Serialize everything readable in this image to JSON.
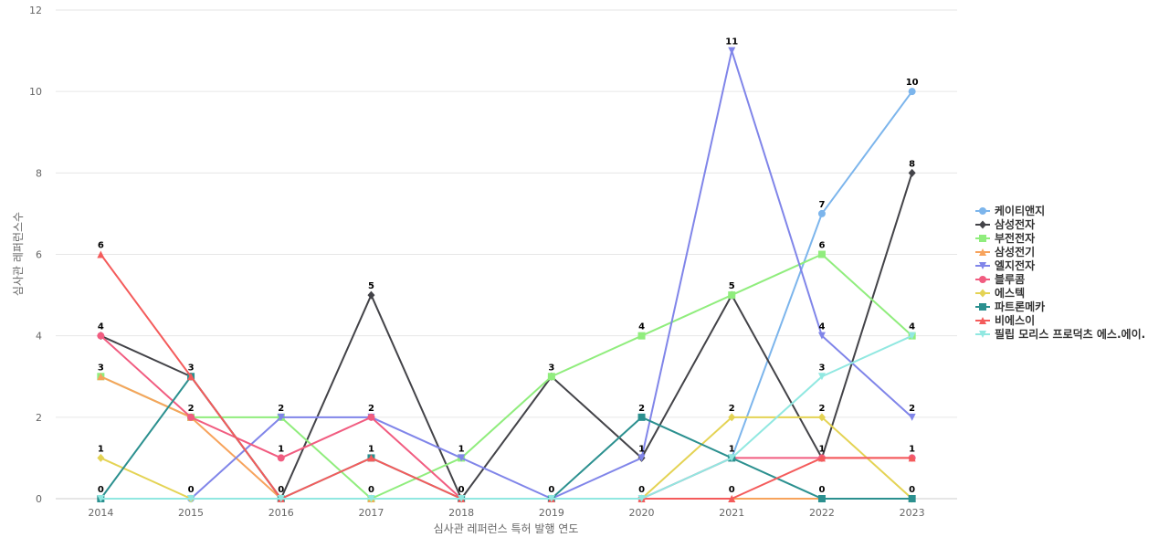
{
  "chart_data": {
    "type": "line",
    "x": [
      "2014",
      "2015",
      "2016",
      "2017",
      "2018",
      "2019",
      "2020",
      "2021",
      "2022",
      "2023"
    ],
    "xlabel": "심사관 레퍼런스 특허 발행 연도",
    "ylabel": "심사관 레퍼런스수",
    "ylim": [
      0,
      12
    ],
    "yticks": [
      0,
      2,
      4,
      6,
      8,
      10,
      12
    ],
    "grid": true,
    "legend_position": "right",
    "series": [
      {
        "name": "케이티앤지",
        "color": "#7cb5ec",
        "marker": "circle",
        "values": [
          0,
          0,
          0,
          0,
          0,
          0,
          0,
          1,
          7,
          10
        ]
      },
      {
        "name": "삼성전자",
        "color": "#434348",
        "marker": "diamond",
        "values": [
          4,
          3,
          0,
          5,
          0,
          3,
          1,
          5,
          1,
          8
        ]
      },
      {
        "name": "부전전자",
        "color": "#90ed7d",
        "marker": "square",
        "values": [
          3,
          2,
          2,
          0,
          1,
          3,
          4,
          5,
          6,
          4
        ]
      },
      {
        "name": "삼성전기",
        "color": "#f7a35c",
        "marker": "triangle",
        "values": [
          3,
          2,
          0,
          0,
          0,
          0,
          0,
          0,
          0,
          0
        ]
      },
      {
        "name": "엘지전자",
        "color": "#8085e9",
        "marker": "triangle-down",
        "values": [
          0,
          0,
          2,
          2,
          1,
          0,
          1,
          11,
          4,
          2
        ]
      },
      {
        "name": "블루콤",
        "color": "#f15c80",
        "marker": "circle",
        "values": [
          4,
          2,
          1,
          2,
          0,
          0,
          0,
          1,
          1,
          1
        ]
      },
      {
        "name": "에스텍",
        "color": "#e4d354",
        "marker": "diamond",
        "values": [
          1,
          0,
          0,
          0,
          0,
          0,
          0,
          2,
          2,
          0
        ]
      },
      {
        "name": "파트론메카",
        "color": "#2b908f",
        "marker": "square",
        "values": [
          0,
          3,
          0,
          1,
          0,
          0,
          2,
          1,
          0,
          0
        ]
      },
      {
        "name": "비에스이",
        "color": "#f45b5b",
        "marker": "triangle",
        "values": [
          6,
          3,
          0,
          1,
          0,
          0,
          0,
          0,
          1,
          1
        ]
      },
      {
        "name": "필립 모리스 프로덕츠 에스.에이.",
        "color": "#91e8e1",
        "marker": "triangle-down",
        "values": [
          0,
          0,
          0,
          0,
          0,
          0,
          0,
          1,
          3,
          4
        ]
      }
    ],
    "data_labels": [
      {
        "x": "2014",
        "series": "비에스이",
        "text": "6"
      },
      {
        "x": "2014",
        "series": "블루콤",
        "text": "4"
      },
      {
        "x": "2014",
        "series": "부전전자",
        "text": "3"
      },
      {
        "x": "2014",
        "series": "에스텍",
        "text": "1"
      },
      {
        "x": "2014",
        "series": "파트론메카",
        "text": "0"
      },
      {
        "x": "2015",
        "series": "파트론메카",
        "text": "3"
      },
      {
        "x": "2015",
        "series": "블루콤",
        "text": "2"
      },
      {
        "x": "2015",
        "series": "에스텍",
        "text": "0"
      },
      {
        "x": "2016",
        "series": "부전전자",
        "text": "2"
      },
      {
        "x": "2016",
        "series": "블루콤",
        "text": "1"
      },
      {
        "x": "2016",
        "series": "삼성전자",
        "text": "0"
      },
      {
        "x": "2017",
        "series": "삼성전자",
        "text": "5"
      },
      {
        "x": "2017",
        "series": "블루콤",
        "text": "2"
      },
      {
        "x": "2017",
        "series": "파트론메카",
        "text": "1"
      },
      {
        "x": "2017",
        "series": "부전전자",
        "text": "0"
      },
      {
        "x": "2018",
        "series": "엘지전자",
        "text": "1"
      },
      {
        "x": "2018",
        "series": "삼성전자",
        "text": "0"
      },
      {
        "x": "2019",
        "series": "부전전자",
        "text": "3"
      },
      {
        "x": "2019",
        "series": "엘지전자",
        "text": "0"
      },
      {
        "x": "2020",
        "series": "부전전자",
        "text": "4"
      },
      {
        "x": "2020",
        "series": "파트론메카",
        "text": "2"
      },
      {
        "x": "2020",
        "series": "엘지전자",
        "text": "1"
      },
      {
        "x": "2020",
        "series": "블루콤",
        "text": "0"
      },
      {
        "x": "2021",
        "series": "엘지전자",
        "text": "11"
      },
      {
        "x": "2021",
        "series": "삼성전자",
        "text": "5"
      },
      {
        "x": "2021",
        "series": "에스텍",
        "text": "2"
      },
      {
        "x": "2021",
        "series": "파트론메카",
        "text": "1"
      },
      {
        "x": "2021",
        "series": "비에스이",
        "text": "0"
      },
      {
        "x": "2022",
        "series": "케이티앤지",
        "text": "7"
      },
      {
        "x": "2022",
        "series": "부전전자",
        "text": "6"
      },
      {
        "x": "2022",
        "series": "엘지전자",
        "text": "4"
      },
      {
        "x": "2022",
        "series": "필립 모리스 프로덕츠 에스.에이.",
        "text": "3"
      },
      {
        "x": "2022",
        "series": "에스텍",
        "text": "2"
      },
      {
        "x": "2022",
        "series": "삼성전자",
        "text": "1"
      },
      {
        "x": "2022",
        "series": "파트론메카",
        "text": "0"
      },
      {
        "x": "2023",
        "series": "케이티앤지",
        "text": "10"
      },
      {
        "x": "2023",
        "series": "삼성전자",
        "text": "8"
      },
      {
        "x": "2023",
        "series": "부전전자",
        "text": "4"
      },
      {
        "x": "2023",
        "series": "엘지전자",
        "text": "2"
      },
      {
        "x": "2023",
        "series": "블루콤",
        "text": "1"
      },
      {
        "x": "2023",
        "series": "파트론메카",
        "text": "0"
      }
    ]
  }
}
